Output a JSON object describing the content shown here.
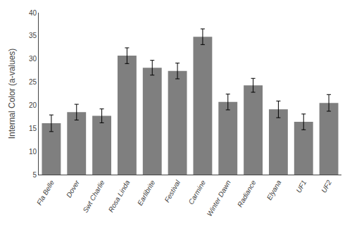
{
  "chart_data": {
    "type": "bar",
    "categories": [
      "Fla Belle",
      "Dover",
      "Swt Charlie",
      "Rosa Linda",
      "Earlibrite",
      "Festival",
      "Carmine",
      "Winter Dawn",
      "Radiance",
      "Elyana",
      "UF1",
      "UF2"
    ],
    "values": [
      16.1,
      18.5,
      17.7,
      30.7,
      28.1,
      27.4,
      34.8,
      20.7,
      24.3,
      19.1,
      16.4,
      20.5
    ],
    "errors": [
      1.8,
      1.7,
      1.5,
      1.7,
      1.6,
      1.7,
      1.7,
      1.7,
      1.5,
      1.8,
      1.7,
      1.8
    ],
    "color": "#7f7f7f",
    "ylabel": "Internal Color (a-values)",
    "ylim": [
      5,
      40
    ],
    "yticks": [
      5,
      10,
      15,
      20,
      25,
      30,
      35,
      40
    ],
    "grid": false
  }
}
